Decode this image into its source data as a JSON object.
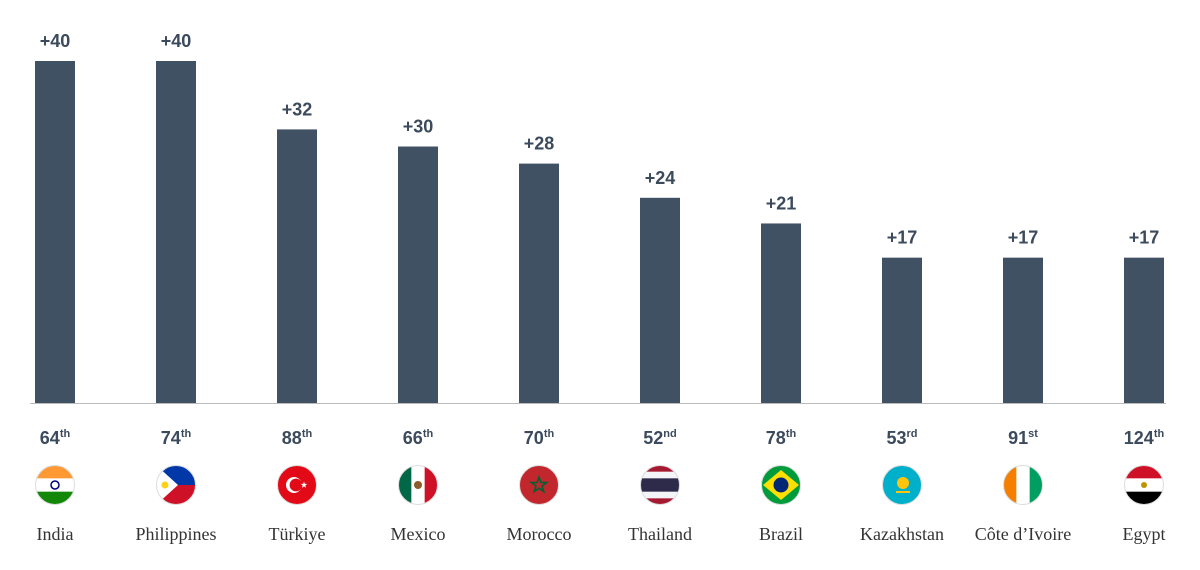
{
  "chart_data": {
    "type": "bar",
    "categories": [
      "India",
      "Philippines",
      "Türkiye",
      "Mexico",
      "Morocco",
      "Thailand",
      "Brazil",
      "Kazakhstan",
      "Côte d’Ivoire",
      "Egypt"
    ],
    "values": [
      40,
      40,
      32,
      30,
      28,
      24,
      21,
      17,
      17,
      17
    ],
    "value_labels": [
      "+40",
      "+40",
      "+32",
      "+30",
      "+28",
      "+24",
      "+21",
      "+17",
      "+17",
      "+17"
    ],
    "ranks": [
      "64",
      "74",
      "88",
      "66",
      "70",
      "52",
      "78",
      "53",
      "91",
      "124"
    ],
    "rank_suffixes": [
      "th",
      "th",
      "th",
      "th",
      "th",
      "nd",
      "th",
      "rd",
      "st",
      "th"
    ],
    "color": "#415164"
  }
}
